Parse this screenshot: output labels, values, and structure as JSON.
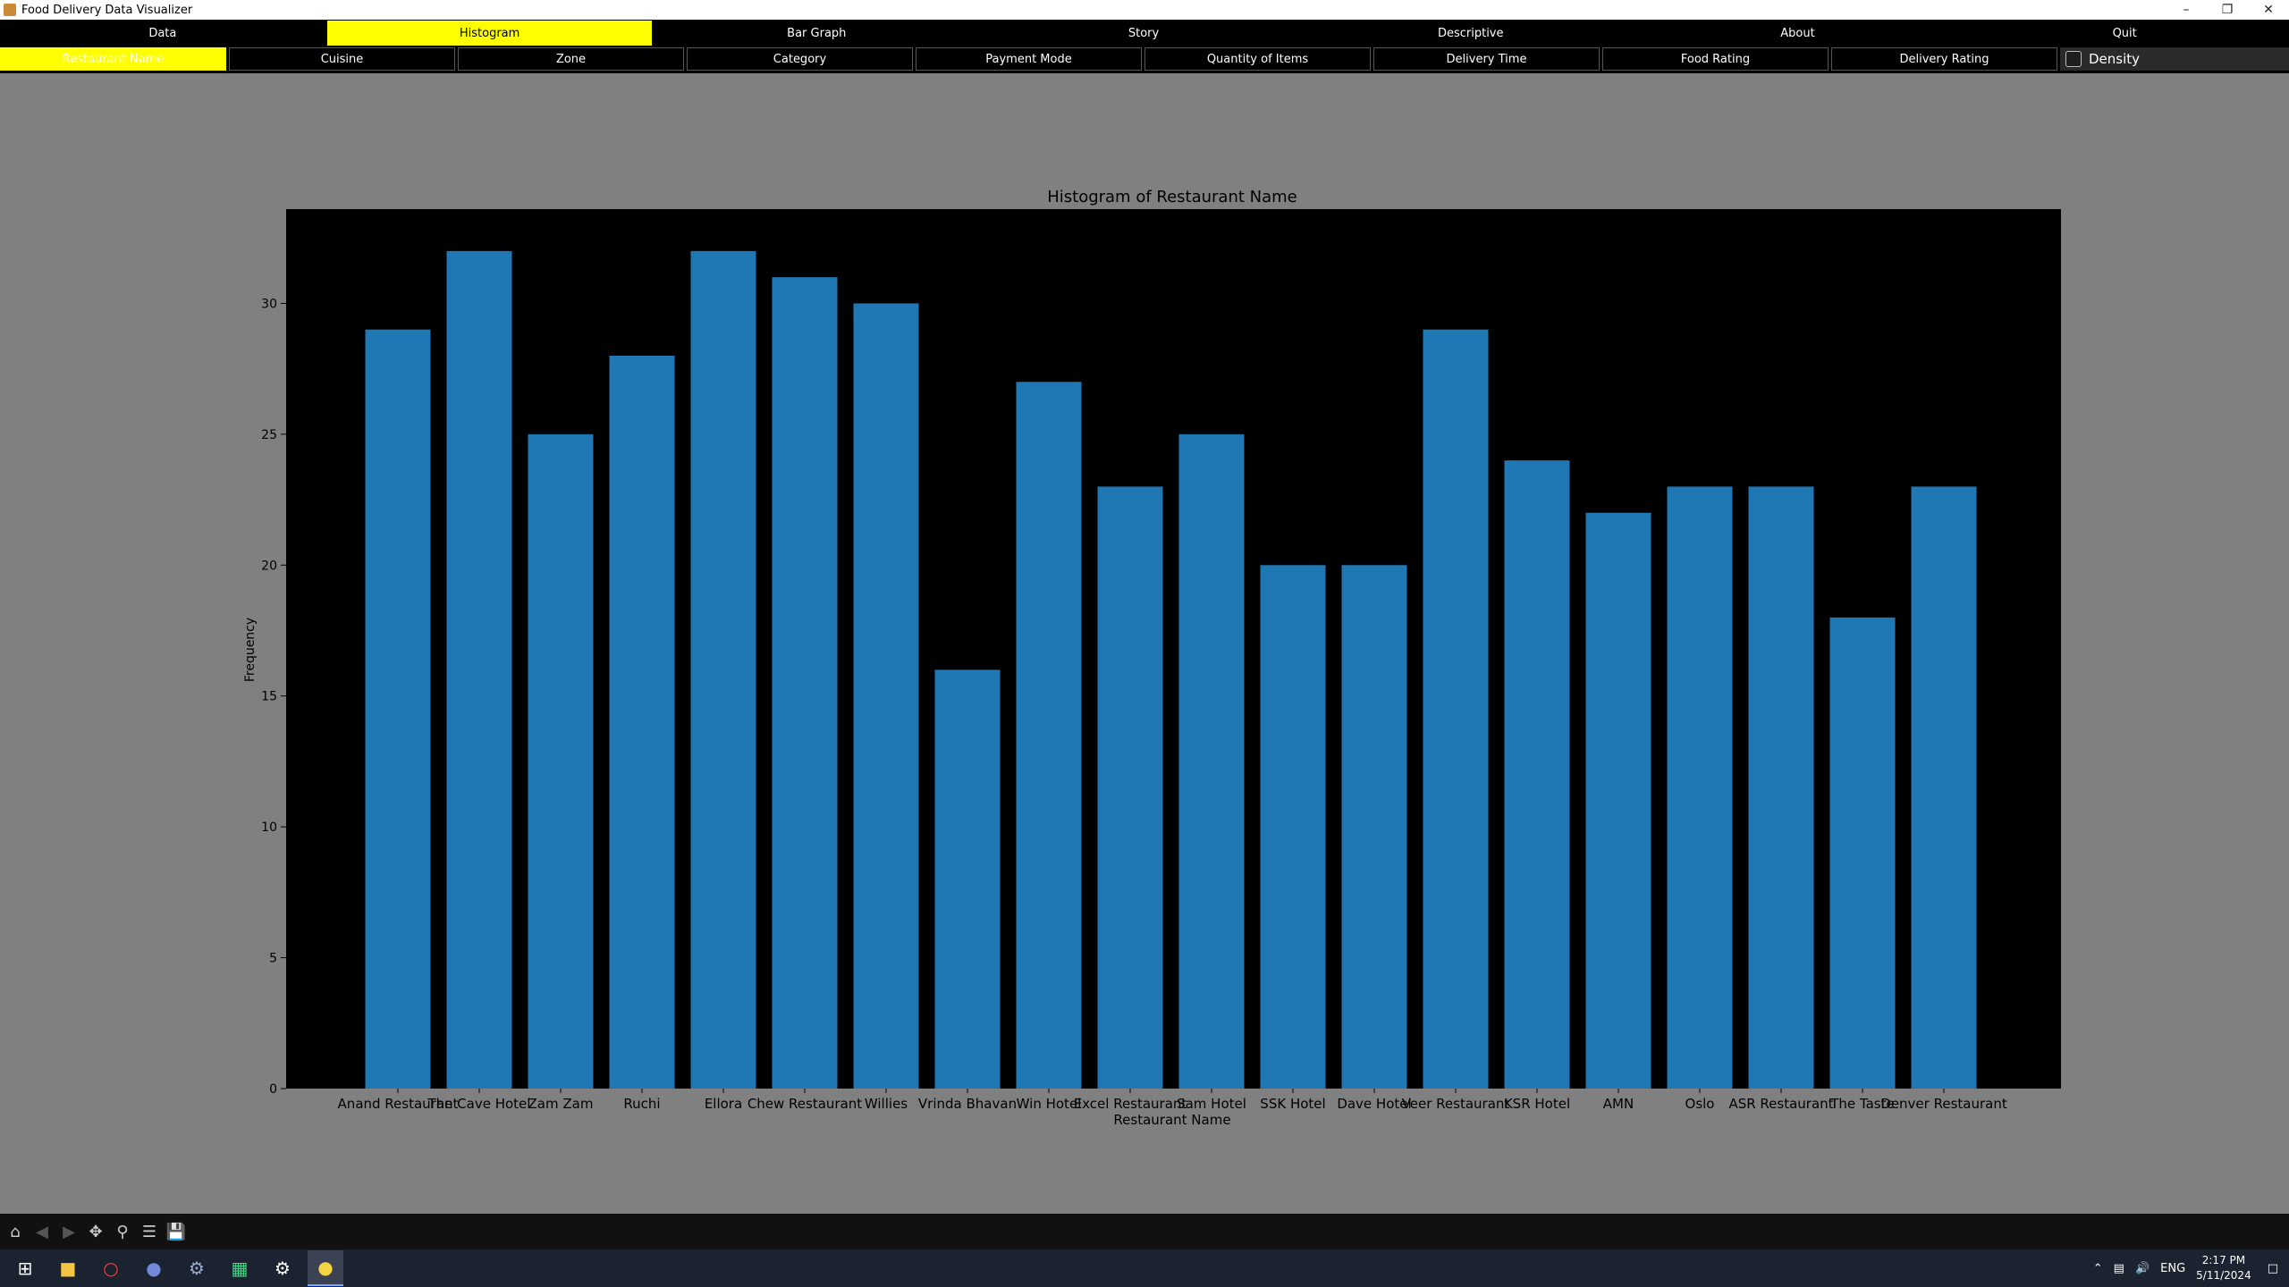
{
  "window": {
    "title": "Food Delivery Data Visualizer"
  },
  "menu": [
    "Data",
    "Histogram",
    "Bar Graph",
    "Story",
    "Descriptive",
    "About",
    "Quit"
  ],
  "menu_active": 1,
  "submenu": [
    "Restaurant Name",
    "Cuisine",
    "Zone",
    "Category",
    "Payment Mode",
    "Quantity of Items",
    "Delivery Time",
    "Food Rating",
    "Delivery Rating"
  ],
  "submenu_active": 0,
  "density_label": "Density",
  "colors": {
    "accent": "#ffff00",
    "bar": "#1f77b4",
    "plot_bg": "#000000",
    "figure_bg": "#808080"
  },
  "toolbar_icons": [
    "home-icon",
    "back-icon",
    "forward-icon",
    "pan-icon",
    "zoom-icon",
    "configure-icon",
    "save-icon"
  ],
  "taskbar": {
    "lang": "ENG",
    "time": "2:17 PM",
    "date": "5/11/2024"
  },
  "chart_data": {
    "type": "bar",
    "title": "Histogram of Restaurant Name",
    "xlabel": "Restaurant Name",
    "ylabel": "Frequency",
    "ylim": [
      0,
      33.6
    ],
    "yticks": [
      0,
      5,
      10,
      15,
      20,
      25,
      30
    ],
    "categories": [
      "Anand Restaurant",
      "The Cave Hotel",
      "Zam Zam",
      "Ruchi",
      "Ellora",
      "Chew Restaurant",
      "Willies",
      "Vrinda Bhavan",
      "Win Hotel",
      "Excel Restaurant",
      "Sam Hotel",
      "SSK Hotel",
      "Dave Hotel",
      "Veer Restaurant",
      "KSR Hotel",
      "AMN",
      "Oslo",
      "ASR Restaurant",
      "The Taste",
      "Denver Restaurant"
    ],
    "values": [
      29,
      32,
      25,
      28,
      32,
      31,
      30,
      16,
      27,
      23,
      25,
      20,
      20,
      29,
      24,
      22,
      23,
      23,
      18,
      23
    ],
    "grid": false,
    "legend": "none"
  }
}
